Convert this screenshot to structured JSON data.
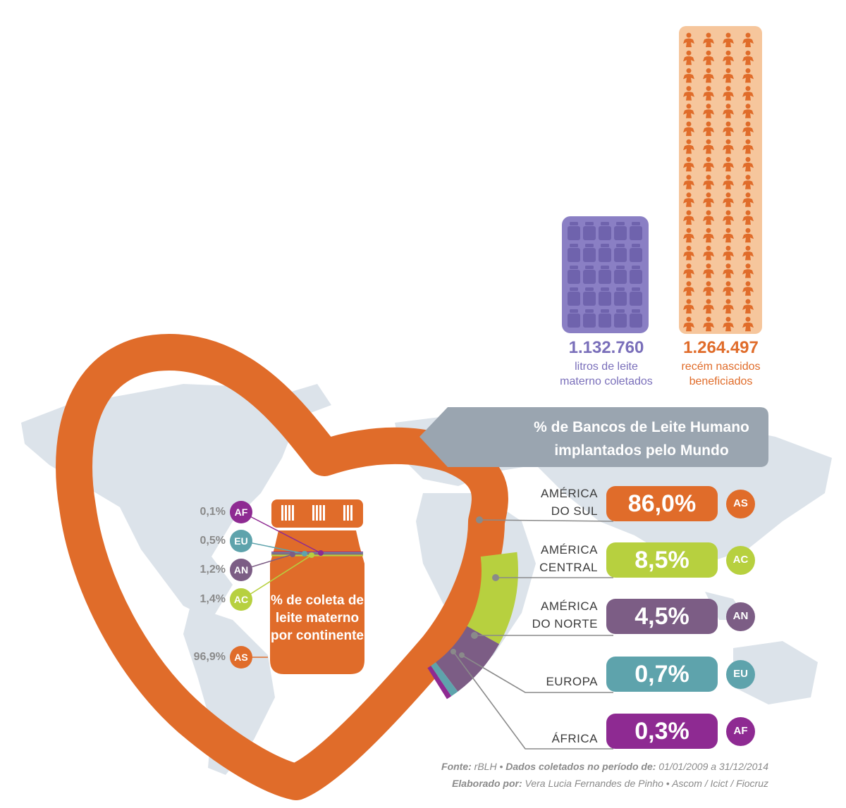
{
  "colors": {
    "orange": "#e06c2a",
    "purple_light": "#8a7fc4",
    "green": "#b7d03f",
    "dark_purple": "#7c5d85",
    "teal": "#5ea3ac",
    "magenta": "#8e2a92",
    "banner": "#9aa5b0",
    "map": "#dce3ea"
  },
  "stats": {
    "liters": {
      "value": "1.132.760",
      "label_line1": "litros de leite",
      "label_line2": "materno coletados",
      "icon": "milk-bottle-icon"
    },
    "newborns": {
      "value": "1.264.497",
      "label_line1": "recém nascidos",
      "label_line2": "beneficiados",
      "icon": "mother-baby-icon"
    }
  },
  "banner": {
    "line1": "% de Bancos de Leite Humano",
    "line2": "implantados pelo Mundo"
  },
  "jar": {
    "line1": "% de coleta de",
    "line2": "leite materno",
    "line3": "por continente"
  },
  "chart_data": [
    {
      "type": "pie",
      "title": "% de Bancos de Leite Humano implantados pelo Mundo",
      "categories": [
        "AMÉRICA DO SUL",
        "AMÉRICA CENTRAL",
        "AMÉRICA DO NORTE",
        "EUROPA",
        "ÁFRICA"
      ],
      "codes": [
        "AS",
        "AC",
        "AN",
        "EU",
        "AF"
      ],
      "labels": [
        "86,0%",
        "8,5%",
        "4,5%",
        "0,7%",
        "0,3%"
      ],
      "values": [
        86.0,
        8.5,
        4.5,
        0.7,
        0.3
      ],
      "colors": [
        "#e06c2a",
        "#b7d03f",
        "#7c5d85",
        "#5ea3ac",
        "#8e2a92"
      ]
    },
    {
      "type": "bar",
      "title": "% de coleta de leite materno por continente",
      "categories": [
        "AF",
        "EU",
        "AN",
        "AC",
        "AS"
      ],
      "labels": [
        "0,1%",
        "0,5%",
        "1,2%",
        "1,4%",
        "96,9%"
      ],
      "values": [
        0.1,
        0.5,
        1.2,
        1.4,
        96.9
      ],
      "colors": [
        "#8e2a92",
        "#5ea3ac",
        "#7c5d85",
        "#b7d03f",
        "#e06c2a"
      ]
    }
  ],
  "footer": {
    "line1_a": "Fonte:",
    "line1_b": " rBLH • ",
    "line1_c": "Dados coletados no período de:",
    "line1_d": " 01/01/2009 a 31/12/2014",
    "line2_a": "Elaborado por:",
    "line2_b": " Vera Lucia Fernandes de Pinho • Ascom / Icict / Fiocruz"
  }
}
